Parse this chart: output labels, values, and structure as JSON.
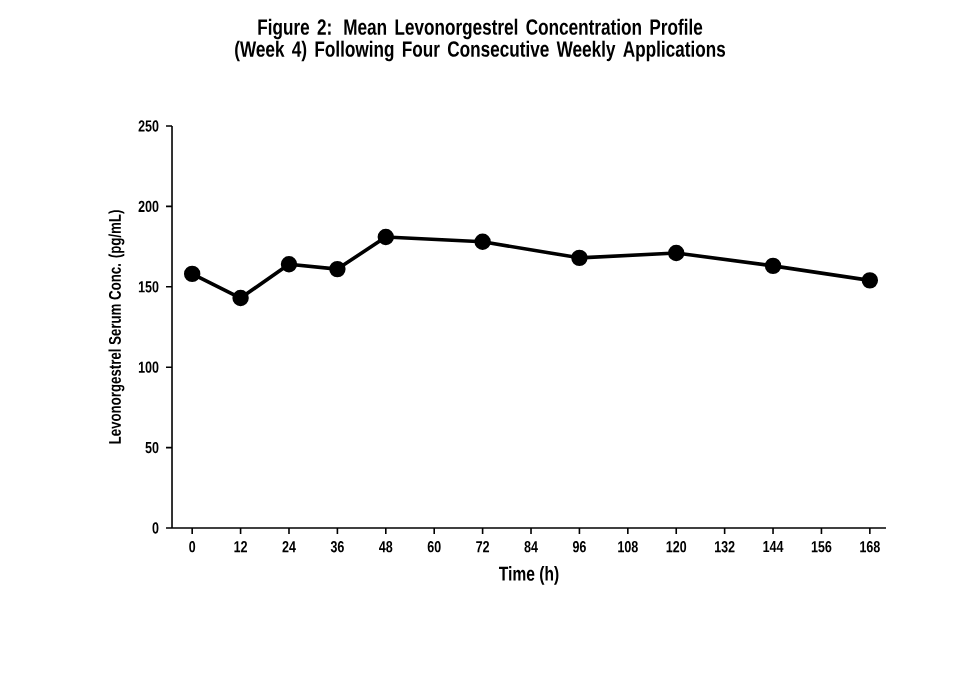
{
  "chart_data": {
    "type": "line",
    "title": "Figure 2: Mean Levonorgestrel Concentration Profile (Week 4) Following Four Consecutive Weekly Applications",
    "xlabel": "Time (h)",
    "ylabel": "Levonorgestrel Serum Conc. (pg/mL)",
    "x": [
      0,
      12,
      24,
      36,
      48,
      72,
      96,
      120,
      144,
      168
    ],
    "series": [
      {
        "color": "#000000",
        "values": [
          158,
          143,
          164,
          161,
          181,
          178,
          168,
          171,
          163,
          154
        ]
      }
    ],
    "xlim": [
      -5,
      172
    ],
    "xticks": [
      0,
      12,
      24,
      36,
      48,
      60,
      72,
      84,
      96,
      108,
      120,
      132,
      144,
      156,
      168
    ],
    "ylim": [
      0,
      250
    ],
    "yticks": [
      0,
      50,
      100,
      150,
      200,
      250
    ],
    "grid": false,
    "marker": "circle",
    "line_style": "solid"
  }
}
